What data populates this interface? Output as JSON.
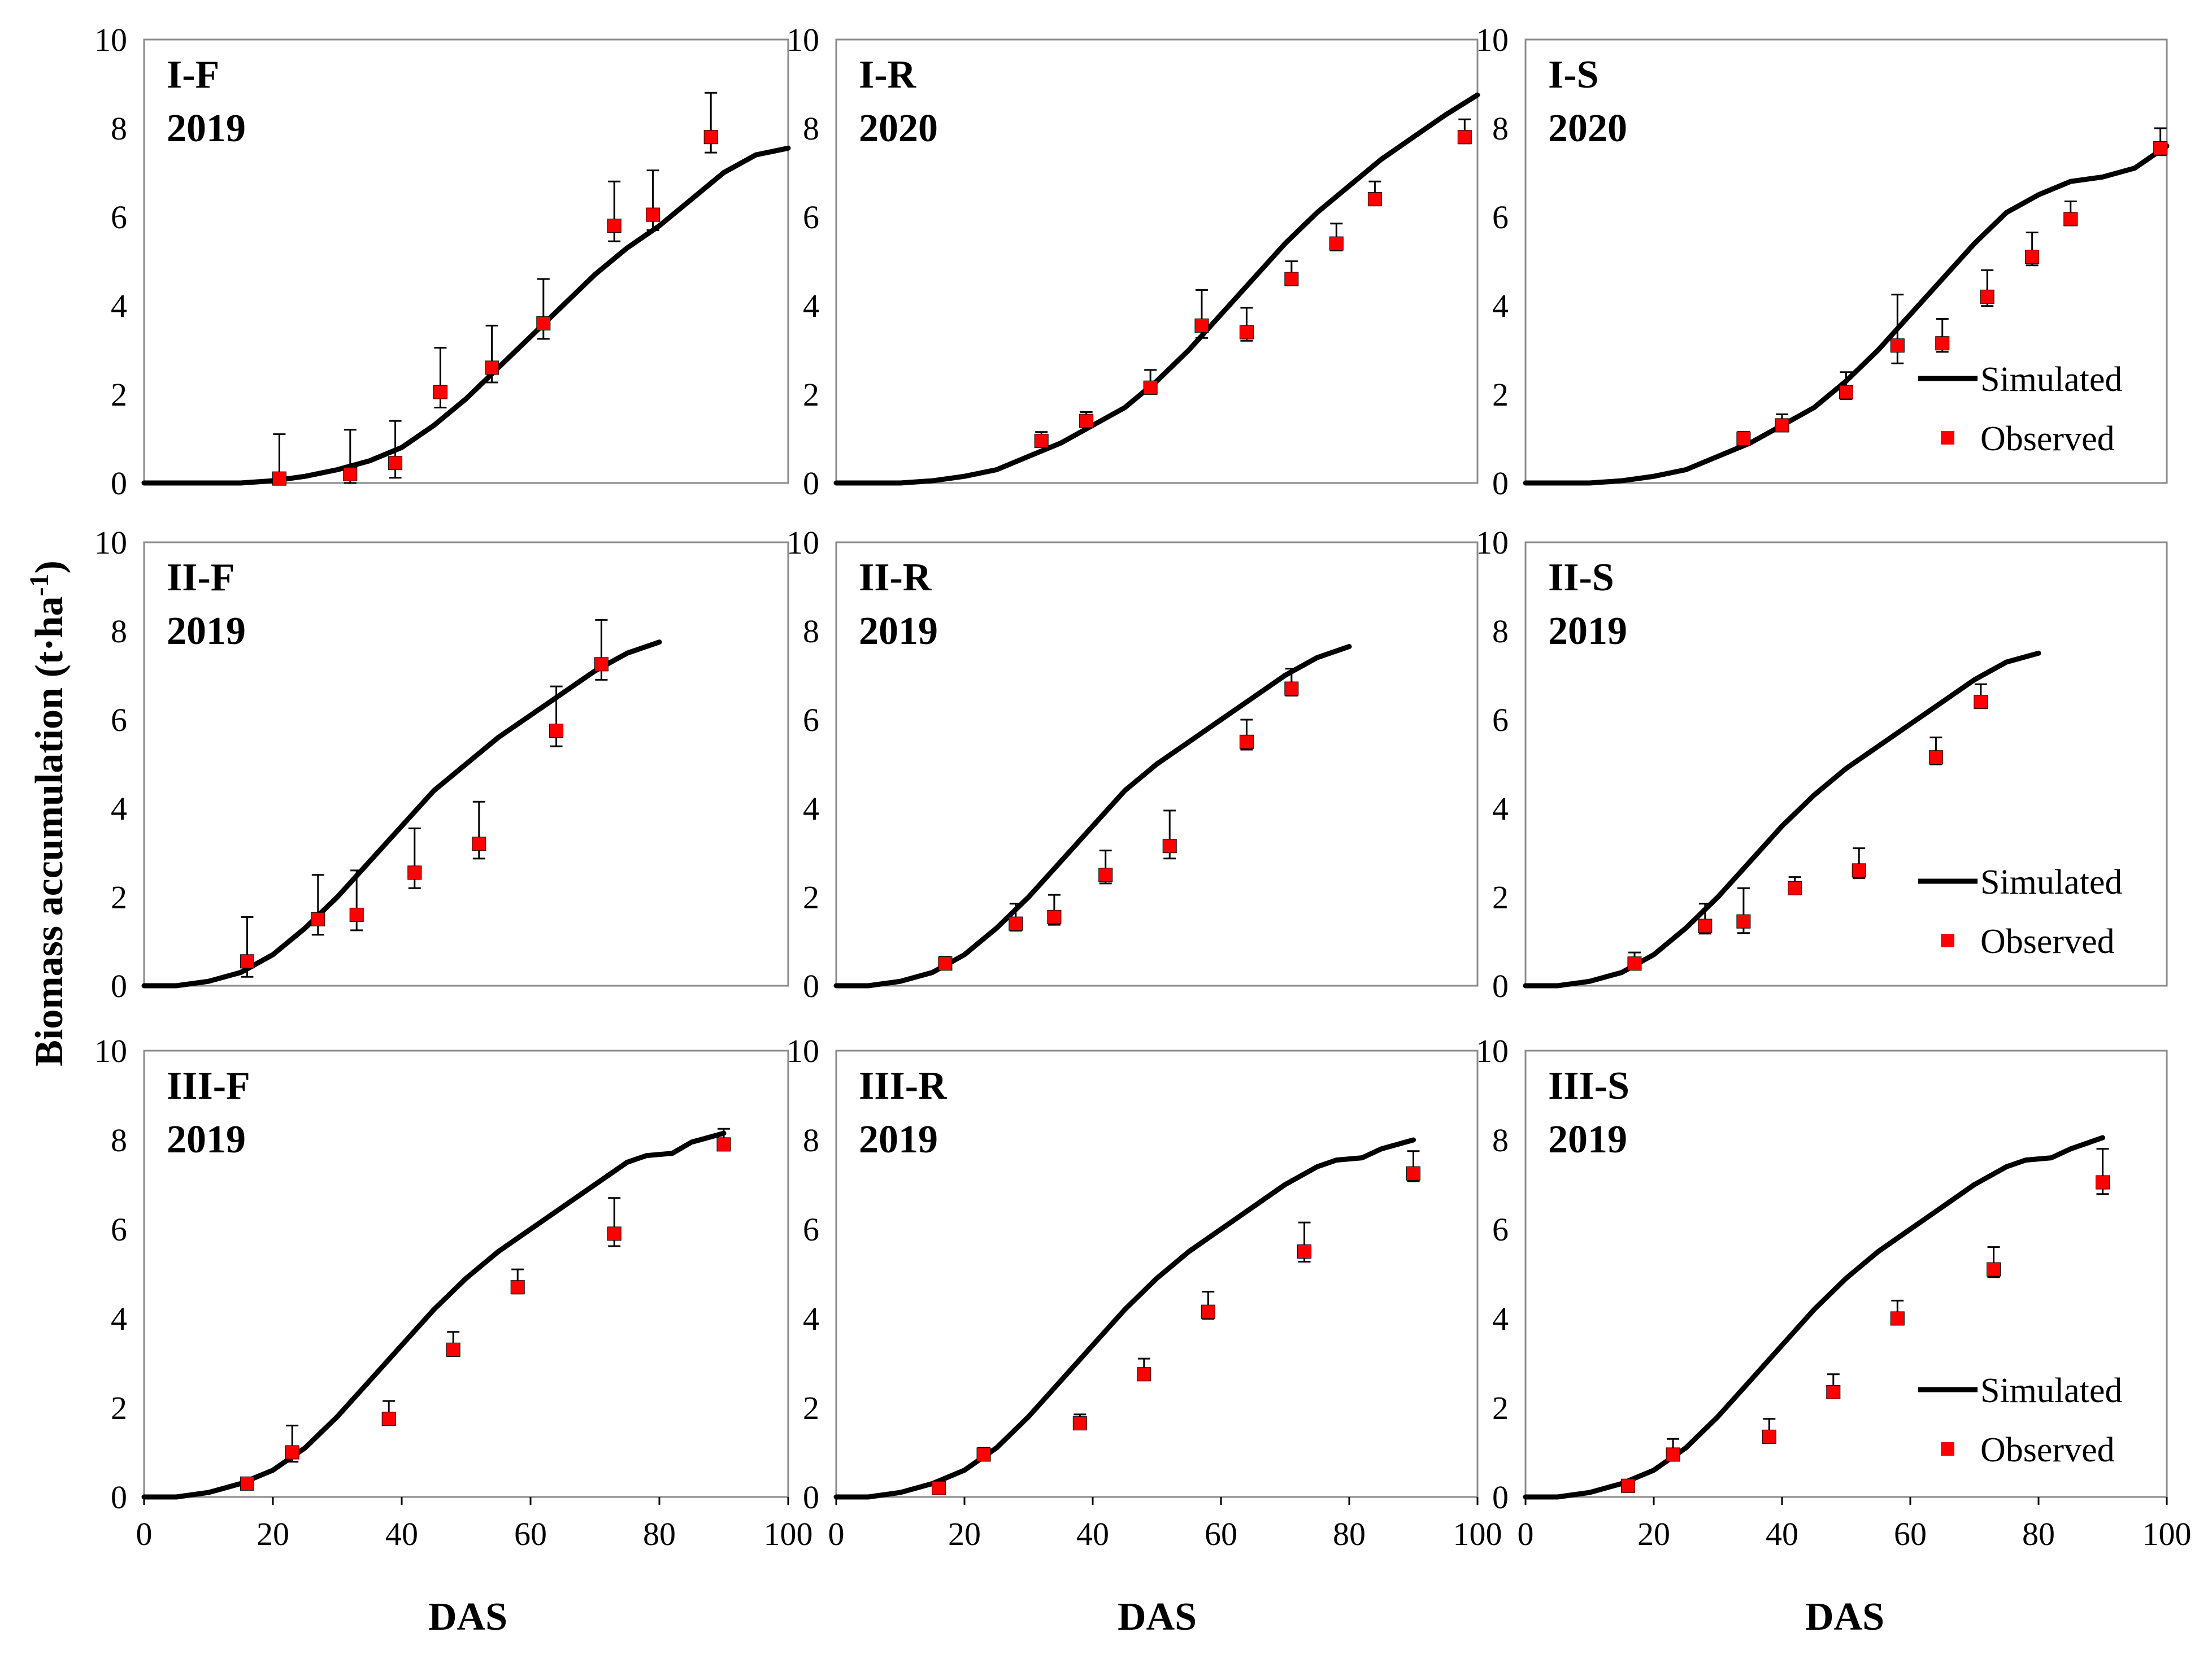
{
  "figure": {
    "ylabel": "Biomass accumulation (t·ha",
    "ylabel_sup": "-1",
    "ylabel_close": ")",
    "xlabel": "DAS"
  },
  "legend": {
    "simulated": "Simulated",
    "observed": "Observed"
  },
  "colors": {
    "simulated": "#000000",
    "observed": "#ff0000",
    "frame": "#8a8a8a"
  },
  "chart_data": [
    {
      "type": "line+scatter",
      "title": "I-F",
      "year": "2019",
      "xlim": [
        0,
        100
      ],
      "ylim": [
        0,
        10
      ],
      "simulated": {
        "x": [
          0,
          15,
          20,
          25,
          30,
          35,
          40,
          45,
          50,
          55,
          60,
          65,
          70,
          75,
          80,
          85,
          90,
          95,
          100
        ],
        "y": [
          0,
          0,
          0.05,
          0.15,
          0.3,
          0.5,
          0.8,
          1.3,
          1.9,
          2.6,
          3.3,
          4.0,
          4.7,
          5.3,
          5.8,
          6.4,
          7.0,
          7.4,
          7.55
        ]
      },
      "observed": {
        "x": [
          21,
          32,
          39,
          46,
          54,
          62,
          73,
          79,
          88
        ],
        "y": [
          0.1,
          0.2,
          0.45,
          2.05,
          2.6,
          3.6,
          5.8,
          6.05,
          7.8
        ],
        "err": [
          1.0,
          1.0,
          0.95,
          1.0,
          0.95,
          1.0,
          1.0,
          1.0,
          1.0
        ]
      }
    },
    {
      "type": "line+scatter",
      "title": "I-R",
      "year": "2020",
      "xlim": [
        0,
        100
      ],
      "ylim": [
        0,
        10
      ],
      "simulated": {
        "x": [
          0,
          10,
          15,
          20,
          25,
          30,
          35,
          40,
          45,
          50,
          55,
          60,
          65,
          70,
          75,
          80,
          85,
          90,
          95,
          100
        ],
        "y": [
          0,
          0,
          0.05,
          0.15,
          0.3,
          0.6,
          0.9,
          1.3,
          1.7,
          2.3,
          3.0,
          3.8,
          4.6,
          5.4,
          6.1,
          6.7,
          7.3,
          7.8,
          8.3,
          8.75
        ]
      },
      "observed": {
        "x": [
          32,
          39,
          49,
          57,
          64,
          71,
          78,
          84,
          98
        ],
        "y": [
          0.95,
          1.4,
          2.15,
          3.55,
          3.4,
          4.6,
          5.4,
          6.4,
          7.8
        ],
        "err": [
          0.2,
          0.2,
          0.4,
          0.8,
          0.55,
          0.4,
          0.45,
          0.4,
          0.4
        ]
      }
    },
    {
      "type": "line+scatter",
      "title": "I-S",
      "year": "2020",
      "xlim": [
        0,
        100
      ],
      "ylim": [
        0,
        10
      ],
      "simulated": {
        "x": [
          0,
          10,
          15,
          20,
          25,
          30,
          35,
          40,
          45,
          50,
          55,
          60,
          65,
          70,
          75,
          80,
          85,
          90,
          95,
          100
        ],
        "y": [
          0,
          0,
          0.05,
          0.15,
          0.3,
          0.6,
          0.9,
          1.3,
          1.7,
          2.3,
          3.0,
          3.8,
          4.6,
          5.4,
          6.1,
          6.5,
          6.8,
          6.9,
          7.1,
          7.6
        ]
      },
      "observed": {
        "x": [
          34,
          40,
          50,
          58,
          65,
          72,
          79,
          85,
          99
        ],
        "y": [
          1.0,
          1.3,
          2.05,
          3.1,
          3.15,
          4.2,
          5.1,
          5.95,
          7.55
        ],
        "err": [
          0.15,
          0.25,
          0.45,
          1.15,
          0.55,
          0.6,
          0.55,
          0.4,
          0.45
        ]
      }
    },
    {
      "type": "line+scatter",
      "title": "II-F",
      "year": "2019",
      "xlim": [
        0,
        100
      ],
      "ylim": [
        0,
        10
      ],
      "simulated": {
        "x": [
          0,
          5,
          10,
          15,
          20,
          25,
          30,
          35,
          40,
          45,
          50,
          55,
          60,
          65,
          70,
          75,
          80
        ],
        "y": [
          0,
          0,
          0.1,
          0.3,
          0.7,
          1.3,
          2.0,
          2.8,
          3.6,
          4.4,
          5.0,
          5.6,
          6.1,
          6.6,
          7.1,
          7.5,
          7.75
        ]
      },
      "observed": {
        "x": [
          16,
          27,
          33,
          42,
          52,
          64,
          71
        ],
        "y": [
          0.55,
          1.5,
          1.6,
          2.55,
          3.2,
          5.75,
          7.25
        ],
        "err": [
          1.0,
          1.0,
          1.0,
          1.0,
          0.95,
          1.0,
          1.0
        ]
      }
    },
    {
      "type": "line+scatter",
      "title": "II-R",
      "year": "2019",
      "xlim": [
        0,
        100
      ],
      "ylim": [
        0,
        10
      ],
      "simulated": {
        "x": [
          0,
          5,
          10,
          15,
          20,
          25,
          30,
          35,
          40,
          45,
          50,
          55,
          60,
          65,
          70,
          75,
          80
        ],
        "y": [
          0,
          0,
          0.1,
          0.3,
          0.7,
          1.3,
          2.0,
          2.8,
          3.6,
          4.4,
          5.0,
          5.5,
          6.0,
          6.5,
          7.0,
          7.4,
          7.65
        ]
      },
      "observed": {
        "x": [
          17,
          28,
          34,
          42,
          52,
          64,
          71
        ],
        "y": [
          0.5,
          1.4,
          1.55,
          2.5,
          3.15,
          5.5,
          6.7
        ],
        "err": [
          0.15,
          0.45,
          0.5,
          0.55,
          0.8,
          0.5,
          0.45
        ]
      }
    },
    {
      "type": "line+scatter",
      "title": "II-S",
      "year": "2019",
      "xlim": [
        0,
        100
      ],
      "ylim": [
        0,
        10
      ],
      "simulated": {
        "x": [
          0,
          5,
          10,
          15,
          20,
          25,
          30,
          35,
          40,
          45,
          50,
          55,
          60,
          65,
          70,
          75,
          80
        ],
        "y": [
          0,
          0,
          0.1,
          0.3,
          0.7,
          1.3,
          2.0,
          2.8,
          3.6,
          4.3,
          4.9,
          5.4,
          5.9,
          6.4,
          6.9,
          7.3,
          7.5
        ]
      },
      "observed": {
        "x": [
          17,
          28,
          34,
          42,
          52,
          64,
          71
        ],
        "y": [
          0.5,
          1.35,
          1.45,
          2.2,
          2.6,
          5.15,
          6.4
        ],
        "err": [
          0.25,
          0.5,
          0.75,
          0.25,
          0.5,
          0.45,
          0.4
        ]
      }
    },
    {
      "type": "line+scatter",
      "title": "III-F",
      "year": "2019",
      "xlim": [
        0,
        100
      ],
      "ylim": [
        0,
        10
      ],
      "simulated": {
        "x": [
          0,
          5,
          10,
          15,
          20,
          25,
          30,
          35,
          40,
          45,
          50,
          55,
          60,
          65,
          70,
          75,
          78,
          82,
          85,
          90
        ],
        "y": [
          0,
          0,
          0.1,
          0.3,
          0.6,
          1.1,
          1.8,
          2.6,
          3.4,
          4.2,
          4.9,
          5.5,
          6.0,
          6.5,
          7.0,
          7.5,
          7.65,
          7.7,
          7.95,
          8.15
        ]
      },
      "observed": {
        "x": [
          16,
          23,
          38,
          48,
          58,
          73,
          90
        ],
        "y": [
          0.3,
          1.0,
          1.75,
          3.3,
          4.7,
          5.9,
          7.9
        ],
        "err": [
          0.1,
          0.6,
          0.4,
          0.4,
          0.4,
          0.8,
          0.35
        ]
      }
    },
    {
      "type": "line+scatter",
      "title": "III-R",
      "year": "2019",
      "xlim": [
        0,
        100
      ],
      "ylim": [
        0,
        10
      ],
      "simulated": {
        "x": [
          0,
          5,
          10,
          15,
          20,
          25,
          30,
          35,
          40,
          45,
          50,
          55,
          60,
          65,
          70,
          75,
          78,
          82,
          85,
          90
        ],
        "y": [
          0,
          0,
          0.1,
          0.3,
          0.6,
          1.1,
          1.8,
          2.6,
          3.4,
          4.2,
          4.9,
          5.5,
          6.0,
          6.5,
          7.0,
          7.4,
          7.55,
          7.6,
          7.8,
          8.0
        ]
      },
      "observed": {
        "x": [
          16,
          23,
          38,
          48,
          58,
          73,
          90
        ],
        "y": [
          0.2,
          0.95,
          1.65,
          2.75,
          4.15,
          5.5,
          7.25
        ],
        "err": [
          0.1,
          0.15,
          0.2,
          0.35,
          0.45,
          0.65,
          0.5
        ]
      }
    },
    {
      "type": "line+scatter",
      "title": "III-S",
      "year": "2019",
      "xlim": [
        0,
        100
      ],
      "ylim": [
        0,
        10
      ],
      "simulated": {
        "x": [
          0,
          5,
          10,
          15,
          20,
          25,
          30,
          35,
          40,
          45,
          50,
          55,
          60,
          65,
          70,
          75,
          78,
          82,
          85,
          90
        ],
        "y": [
          0,
          0,
          0.1,
          0.3,
          0.6,
          1.1,
          1.8,
          2.6,
          3.4,
          4.2,
          4.9,
          5.5,
          6.0,
          6.5,
          7.0,
          7.4,
          7.55,
          7.6,
          7.8,
          8.05
        ]
      },
      "observed": {
        "x": [
          16,
          23,
          38,
          48,
          58,
          73,
          90
        ],
        "y": [
          0.25,
          0.95,
          1.35,
          2.35,
          4.0,
          5.1,
          7.05
        ],
        "err": [
          0.1,
          0.35,
          0.4,
          0.4,
          0.4,
          0.5,
          0.75
        ]
      }
    }
  ],
  "axis_ticks": {
    "y": [
      "0",
      "2",
      "4",
      "6",
      "8",
      "10"
    ],
    "x": [
      "0",
      "20",
      "40",
      "60",
      "80",
      "100"
    ]
  }
}
